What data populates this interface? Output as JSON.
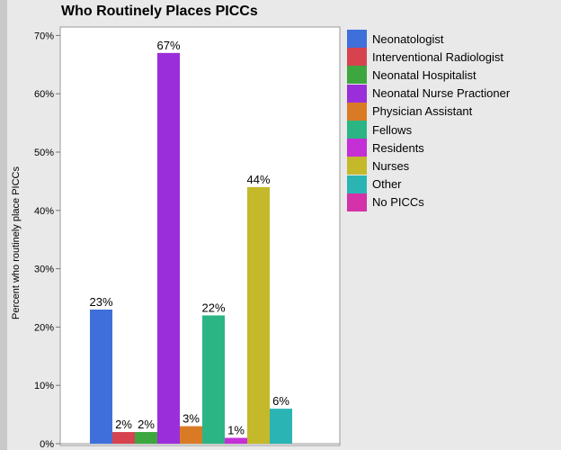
{
  "chart_data": {
    "type": "bar",
    "title": "Who Routinely Places PICCs",
    "ylabel": "Percent who routinely place PICCs",
    "xlabel": "",
    "ylim": [
      0,
      72
    ],
    "yticks": [
      "0%",
      "10%",
      "20%",
      "30%",
      "40%",
      "50%",
      "60%",
      "70%"
    ],
    "grid": false,
    "legend_position": "right",
    "categories": [
      "Neonatologist",
      "Interventional Radiologist",
      "Neonatal Hospitalist",
      "Neonatal Nurse Practioner",
      "Physician Assistant",
      "Fellows",
      "Residents",
      "Nurses",
      "Other",
      "No PICCs"
    ],
    "legend_labels": [
      "Neonatologist",
      "Interventional Radiologist",
      "Neonatal Hospitalist",
      "Neonatal Nurse Practioner",
      "Physician Assistant",
      "Fellows",
      "Residents",
      "Nurses",
      "Other",
      "No PICCs"
    ],
    "values": [
      23,
      2,
      2,
      67,
      3,
      22,
      1,
      44,
      6,
      0
    ],
    "data_labels": [
      "23%",
      "2%",
      "2%",
      "67%",
      "3%",
      "22%",
      "1%",
      "44%",
      "6%",
      ""
    ],
    "colors": [
      "#3f6fdb",
      "#d6434f",
      "#3da63f",
      "#9b2edb",
      "#d97b25",
      "#2bb584",
      "#c42fd6",
      "#c4b92b",
      "#2bb4b4",
      "#d432a8"
    ]
  }
}
